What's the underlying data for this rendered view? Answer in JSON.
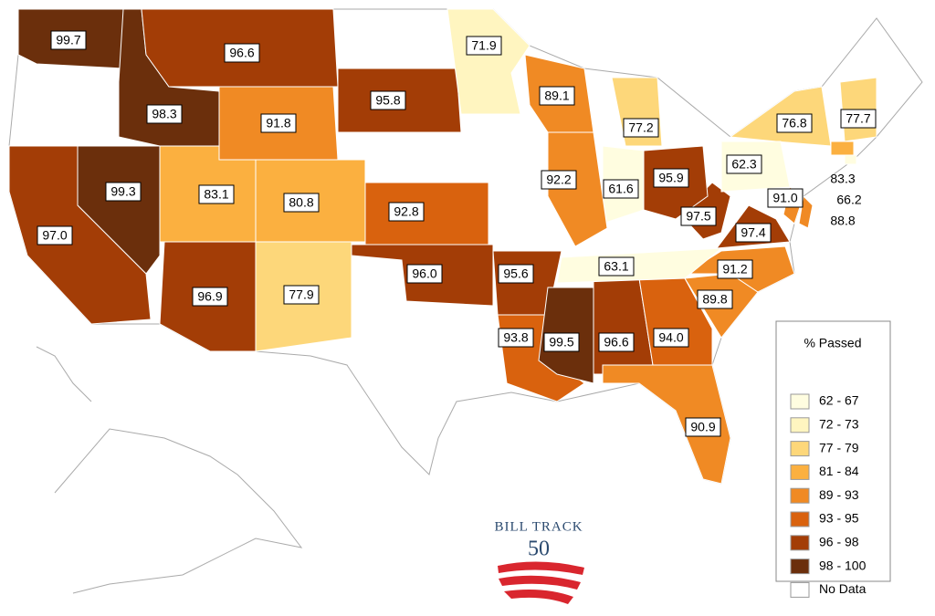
{
  "map": {
    "states": [
      {
        "label": "99.7",
        "color": "#6b2f0c"
      },
      {
        "label": "98.3",
        "color": "#6b2f0c"
      },
      {
        "label": "96.6",
        "color": "#a33d06"
      },
      {
        "label": "91.8",
        "color": "#f08a24"
      },
      {
        "label": "95.8",
        "color": "#a33d06"
      },
      {
        "label": "99.3",
        "color": "#6b2f0c"
      },
      {
        "label": "97.0",
        "color": "#a33d06"
      },
      {
        "label": "83.1",
        "color": "#fbb040"
      },
      {
        "label": "80.8",
        "color": "#fbb040"
      },
      {
        "label": "96.9",
        "color": "#a33d06"
      },
      {
        "label": "77.9",
        "color": "#fdd77a"
      },
      {
        "label": "92.8",
        "color": "#d9620e"
      },
      {
        "label": "96.0",
        "color": "#a33d06"
      },
      {
        "label": "95.6",
        "color": "#a33d06"
      },
      {
        "label": "93.8",
        "color": "#d9620e"
      },
      {
        "label": "99.5",
        "color": "#6b2f0c"
      },
      {
        "label": "96.6",
        "color": "#a33d06"
      },
      {
        "label": "94.0",
        "color": "#d9620e"
      },
      {
        "label": "90.9",
        "color": "#f08a24"
      },
      {
        "label": "89.8",
        "color": "#f08a24"
      },
      {
        "label": "91.2",
        "color": "#f08a24"
      },
      {
        "label": "63.1",
        "color": "#fffde0"
      },
      {
        "label": "97.4",
        "color": "#a33d06"
      },
      {
        "label": "97.5",
        "color": "#a33d06"
      },
      {
        "label": "95.9",
        "color": "#a33d06"
      },
      {
        "label": "61.6",
        "color": "#fffde0"
      },
      {
        "label": "92.2",
        "color": "#f08a24"
      },
      {
        "label": "89.1",
        "color": "#f08a24"
      },
      {
        "label": "71.9",
        "color": "#fff5c0"
      },
      {
        "label": "77.2",
        "color": "#fdd77a"
      },
      {
        "label": "76.8",
        "color": "#fdd77a"
      },
      {
        "label": "62.3",
        "color": "#fffde0"
      },
      {
        "label": "91.0",
        "color": "#f08a24"
      },
      {
        "label": "77.7",
        "color": "#fdd77a"
      },
      {
        "label": "83.3",
        "color": "#fbb040"
      },
      {
        "label": "66.2",
        "color": "#fffde0"
      },
      {
        "label": "88.8",
        "color": "#f08a24"
      }
    ],
    "legend": {
      "title": "% Passed",
      "items": [
        {
          "label": "62 - 67",
          "color": "#fffde0"
        },
        {
          "label": "72 - 73",
          "color": "#fff5c0"
        },
        {
          "label": "77 - 79",
          "color": "#fdd77a"
        },
        {
          "label": "81 - 84",
          "color": "#fbb040"
        },
        {
          "label": "89 - 93",
          "color": "#f08a24"
        },
        {
          "label": "93 - 95",
          "color": "#d9620e"
        },
        {
          "label": "96 - 98",
          "color": "#a33d06"
        },
        {
          "label": "98 - 100",
          "color": "#6b2f0c"
        },
        {
          "label": "No Data",
          "color": "#ffffff"
        }
      ]
    },
    "logo": {
      "name": "BILL TRACK",
      "number": "50"
    }
  }
}
